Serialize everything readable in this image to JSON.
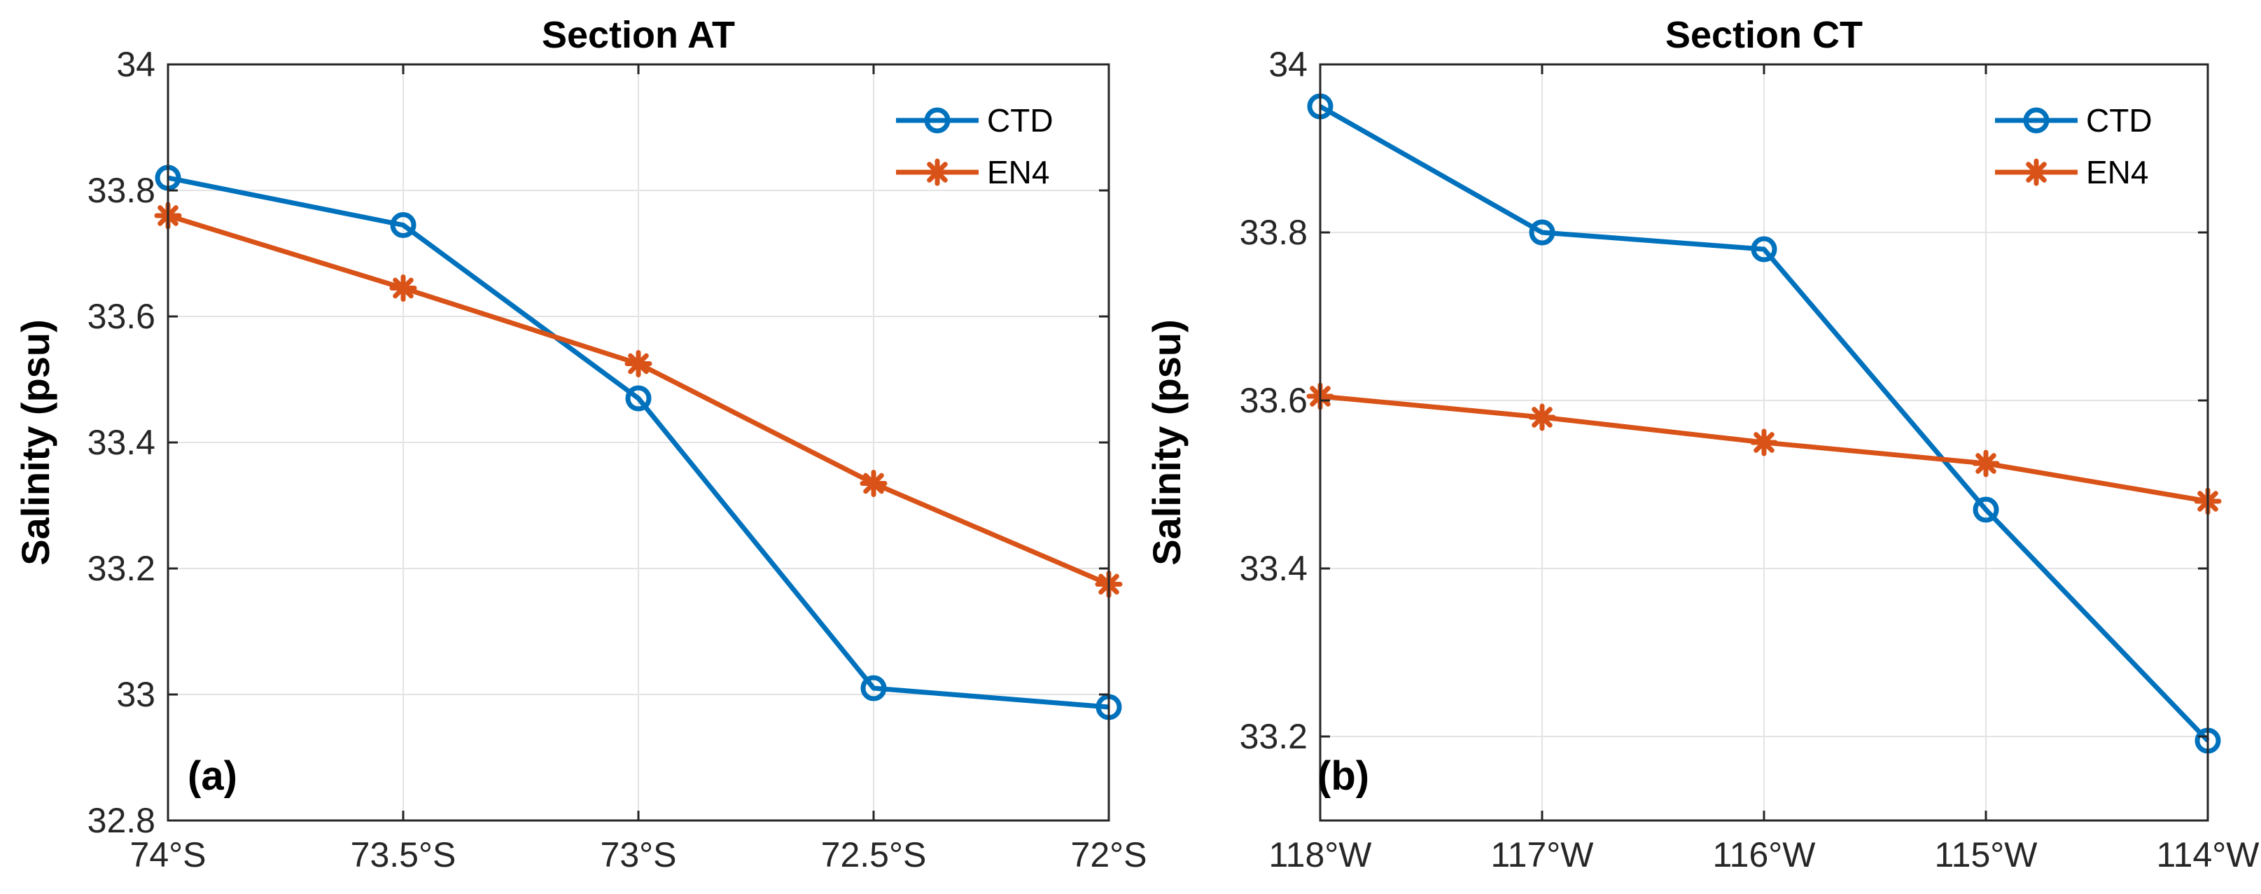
{
  "chart_data": [
    {
      "type": "line",
      "panel": "(a)",
      "title": "Section AT",
      "ylabel": "Salinity (psu)",
      "xlabel": "",
      "xlim": [
        -74,
        -72
      ],
      "ylim": [
        32.8,
        34
      ],
      "xticks": [
        -74,
        -73.5,
        -73,
        -72.5,
        -72
      ],
      "xtick_labels": [
        "74°S",
        "73.5°S",
        "73°S",
        "72.5°S",
        "72°S"
      ],
      "yticks": [
        32.8,
        33,
        33.2,
        33.4,
        33.6,
        33.8,
        34
      ],
      "ytick_labels": [
        "32.8",
        "33",
        "33.2",
        "33.4",
        "33.6",
        "33.8",
        "34"
      ],
      "grid": true,
      "legend_position": "top-right",
      "x": [
        -74,
        -73.5,
        -73,
        -72.5,
        -72
      ],
      "series": [
        {
          "name": "CTD",
          "color": "#0072BD",
          "marker": "circle",
          "values": [
            33.82,
            33.745,
            33.47,
            33.01,
            32.98
          ]
        },
        {
          "name": "EN4",
          "color": "#D95319",
          "marker": "asterisk",
          "values": [
            33.76,
            33.645,
            33.525,
            33.335,
            33.175
          ]
        }
      ]
    },
    {
      "type": "line",
      "panel": "(b)",
      "title": "Section CT",
      "ylabel": "Salinity (psu)",
      "xlabel": "",
      "xlim": [
        -118,
        -114
      ],
      "ylim": [
        33.1,
        34
      ],
      "xticks": [
        -118,
        -117,
        -116,
        -115,
        -114
      ],
      "xtick_labels": [
        "118°W",
        "117°W",
        "116°W",
        "115°W",
        "114°W"
      ],
      "yticks": [
        33.2,
        33.4,
        33.6,
        33.8,
        34
      ],
      "ytick_labels": [
        "33.2",
        "33.4",
        "33.6",
        "33.8",
        "34"
      ],
      "grid": true,
      "legend_position": "top-right",
      "x": [
        -118,
        -117,
        -116,
        -115,
        -114
      ],
      "series": [
        {
          "name": "CTD",
          "color": "#0072BD",
          "marker": "circle",
          "values": [
            33.95,
            33.8,
            33.78,
            33.47,
            33.195
          ]
        },
        {
          "name": "EN4",
          "color": "#D95319",
          "marker": "asterisk",
          "values": [
            33.605,
            33.58,
            33.55,
            33.525,
            33.48
          ]
        }
      ]
    }
  ]
}
